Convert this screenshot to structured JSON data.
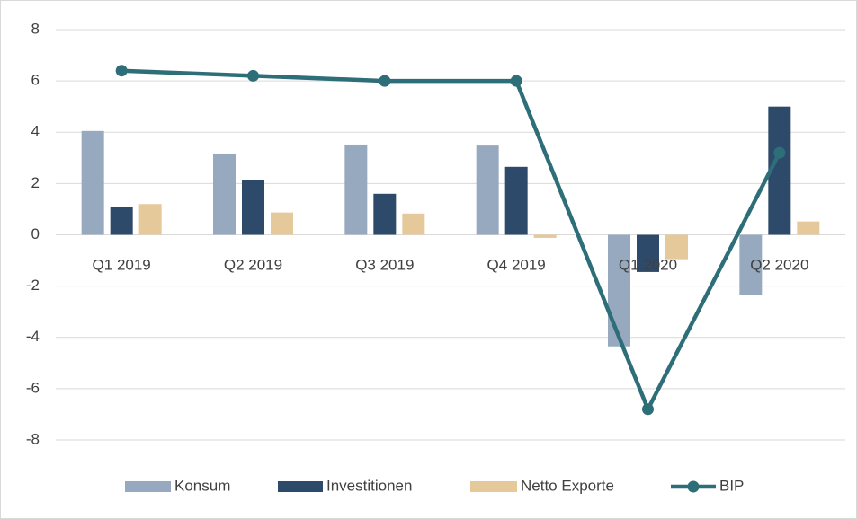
{
  "chart_data": {
    "type": "bar_line",
    "categories": [
      "Q1 2019",
      "Q2 2019",
      "Q3 2019",
      "Q4 2019",
      "Q1 2020",
      "Q2 2020"
    ],
    "series": [
      {
        "name": "Konsum",
        "type": "bar",
        "color": "#97a9be",
        "values": [
          4.05,
          3.17,
          3.52,
          3.48,
          -4.35,
          -2.35
        ]
      },
      {
        "name": "Investitionen",
        "type": "bar",
        "color": "#2e4a6b",
        "values": [
          1.1,
          2.12,
          1.6,
          2.65,
          -1.45,
          5.0
        ]
      },
      {
        "name": "Netto Exporte",
        "type": "bar",
        "color": "#e6c99a",
        "values": [
          1.2,
          0.87,
          0.83,
          -0.12,
          -0.95,
          0.52
        ]
      },
      {
        "name": "BIP",
        "type": "line",
        "color": "#2e6e78",
        "values": [
          6.4,
          6.2,
          6.0,
          6.0,
          -6.8,
          3.2
        ]
      }
    ],
    "ylim": [
      -8,
      8
    ],
    "yticks": [
      -8,
      -6,
      -4,
      -2,
      0,
      2,
      4,
      6,
      8
    ],
    "grid": true,
    "legend": "bottom"
  }
}
